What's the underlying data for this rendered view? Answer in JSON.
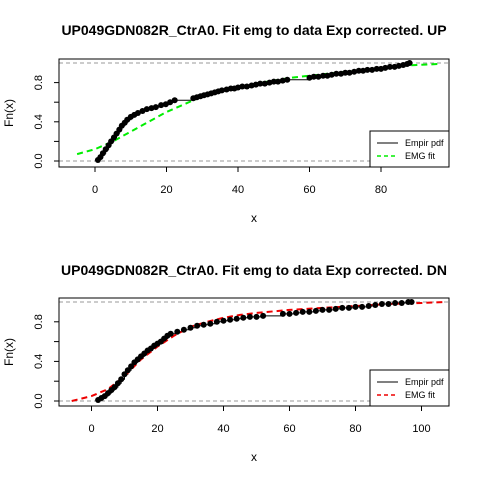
{
  "chart_data": [
    {
      "type": "line",
      "title": "UP049GDN082R_CtrA0. Fit emg to data Exp corrected. UP",
      "xlabel": "x",
      "ylabel": "Fn(x)",
      "xlim": [
        -10,
        100
      ],
      "ylim": [
        0,
        1
      ],
      "x_ticks": [
        "0",
        "20",
        "40",
        "60",
        "80"
      ],
      "y_ticks": [
        "0.0",
        "0.4",
        "0.8"
      ],
      "legend_position": "bottom-right",
      "legend": [
        "Empir pdf",
        "EMG fit"
      ],
      "fit_color": "#00ee00",
      "series": [
        {
          "name": "Empir pdf",
          "color": "#000000",
          "points": [
            [
              0.8,
              0.01
            ],
            [
              1.5,
              0.04
            ],
            [
              2.2,
              0.08
            ],
            [
              3.0,
              0.12
            ],
            [
              3.8,
              0.16
            ],
            [
              4.5,
              0.2
            ],
            [
              5.3,
              0.24
            ],
            [
              6.0,
              0.28
            ],
            [
              6.8,
              0.32
            ],
            [
              7.5,
              0.36
            ],
            [
              8.3,
              0.39
            ],
            [
              9.0,
              0.42
            ],
            [
              10.0,
              0.45
            ],
            [
              11.0,
              0.47
            ],
            [
              12.0,
              0.49
            ],
            [
              13.3,
              0.51
            ],
            [
              14.5,
              0.53
            ],
            [
              15.8,
              0.54
            ],
            [
              17.0,
              0.55
            ],
            [
              18.5,
              0.57
            ],
            [
              19.8,
              0.58
            ],
            [
              21.0,
              0.6
            ],
            [
              22.3,
              0.62
            ],
            [
              27.5,
              0.64
            ],
            [
              28.5,
              0.65
            ],
            [
              29.5,
              0.66
            ],
            [
              30.5,
              0.67
            ],
            [
              31.5,
              0.68
            ],
            [
              32.5,
              0.69
            ],
            [
              33.5,
              0.7
            ],
            [
              34.5,
              0.71
            ],
            [
              35.5,
              0.72
            ],
            [
              36.8,
              0.73
            ],
            [
              38.0,
              0.74
            ],
            [
              39.0,
              0.74
            ],
            [
              40.0,
              0.75
            ],
            [
              41.2,
              0.76
            ],
            [
              42.5,
              0.76
            ],
            [
              43.8,
              0.77
            ],
            [
              45.0,
              0.78
            ],
            [
              46.2,
              0.79
            ],
            [
              47.5,
              0.79
            ],
            [
              48.8,
              0.8
            ],
            [
              50.0,
              0.81
            ],
            [
              51.2,
              0.81
            ],
            [
              52.5,
              0.82
            ],
            [
              53.8,
              0.83
            ],
            [
              60.0,
              0.85
            ],
            [
              61.2,
              0.86
            ],
            [
              62.5,
              0.86
            ],
            [
              63.8,
              0.87
            ],
            [
              65.0,
              0.87
            ],
            [
              66.2,
              0.88
            ],
            [
              67.5,
              0.89
            ],
            [
              68.8,
              0.89
            ],
            [
              70.0,
              0.9
            ],
            [
              71.2,
              0.9
            ],
            [
              72.5,
              0.91
            ],
            [
              73.8,
              0.92
            ],
            [
              75.0,
              0.92
            ],
            [
              76.2,
              0.93
            ],
            [
              77.5,
              0.93
            ],
            [
              78.8,
              0.94
            ],
            [
              80.0,
              0.94
            ],
            [
              81.2,
              0.95
            ],
            [
              82.5,
              0.96
            ],
            [
              83.8,
              0.96
            ],
            [
              85.0,
              0.97
            ],
            [
              86.2,
              0.98
            ],
            [
              87.3,
              0.99
            ],
            [
              88.0,
              1.0
            ]
          ]
        },
        {
          "name": "EMG fit",
          "style": "dashed",
          "color": "#00ee00",
          "points": [
            [
              -5,
              0.07
            ],
            [
              0,
              0.12
            ],
            [
              5,
              0.2
            ],
            [
              10,
              0.3
            ],
            [
              15,
              0.4
            ],
            [
              20,
              0.5
            ],
            [
              25,
              0.58
            ],
            [
              30,
              0.66
            ],
            [
              35,
              0.71
            ],
            [
              40,
              0.75
            ],
            [
              45,
              0.79
            ],
            [
              50,
              0.82
            ],
            [
              55,
              0.85
            ],
            [
              60,
              0.87
            ],
            [
              65,
              0.89
            ],
            [
              70,
              0.91
            ],
            [
              75,
              0.93
            ],
            [
              80,
              0.95
            ],
            [
              85,
              0.97
            ],
            [
              90,
              0.98
            ],
            [
              96,
              0.99
            ]
          ]
        }
      ]
    },
    {
      "type": "line",
      "title": "UP049GDN082R_CtrA0. Fit emg to data Exp corrected. DN",
      "xlabel": "x",
      "ylabel": "Fn(x)",
      "xlim": [
        -10,
        110
      ],
      "ylim": [
        0,
        1
      ],
      "x_ticks": [
        "0",
        "20",
        "40",
        "60",
        "80",
        "100"
      ],
      "y_ticks": [
        "0.0",
        "0.4",
        "0.8"
      ],
      "legend_position": "bottom-right",
      "legend": [
        "Empir pdf",
        "EMG fit"
      ],
      "fit_color": "#ee0000",
      "series": [
        {
          "name": "Empir pdf",
          "color": "#000000",
          "points": [
            [
              2.0,
              0.01
            ],
            [
              3.0,
              0.03
            ],
            [
              4.0,
              0.05
            ],
            [
              5.0,
              0.08
            ],
            [
              6.0,
              0.11
            ],
            [
              7.0,
              0.14
            ],
            [
              8.0,
              0.18
            ],
            [
              9.0,
              0.22
            ],
            [
              10.0,
              0.27
            ],
            [
              11.0,
              0.31
            ],
            [
              12.0,
              0.35
            ],
            [
              13.0,
              0.39
            ],
            [
              14.0,
              0.42
            ],
            [
              15.0,
              0.45
            ],
            [
              16.0,
              0.48
            ],
            [
              17.0,
              0.51
            ],
            [
              18.0,
              0.53
            ],
            [
              19.0,
              0.56
            ],
            [
              20.0,
              0.58
            ],
            [
              21.0,
              0.6
            ],
            [
              22.0,
              0.63
            ],
            [
              23.0,
              0.66
            ],
            [
              24.0,
              0.68
            ],
            [
              26.0,
              0.7
            ],
            [
              28.0,
              0.72
            ],
            [
              30.0,
              0.74
            ],
            [
              32.0,
              0.76
            ],
            [
              34.0,
              0.77
            ],
            [
              36.0,
              0.78
            ],
            [
              38.0,
              0.8
            ],
            [
              40.0,
              0.81
            ],
            [
              42.0,
              0.82
            ],
            [
              44.0,
              0.83
            ],
            [
              46.0,
              0.84
            ],
            [
              48.0,
              0.85
            ],
            [
              50.0,
              0.85
            ],
            [
              52.0,
              0.86
            ],
            [
              58.0,
              0.88
            ],
            [
              60.0,
              0.88
            ],
            [
              62.0,
              0.89
            ],
            [
              64.0,
              0.9
            ],
            [
              66.0,
              0.9
            ],
            [
              68.0,
              0.91
            ],
            [
              70.0,
              0.92
            ],
            [
              72.0,
              0.92
            ],
            [
              74.0,
              0.93
            ],
            [
              76.0,
              0.94
            ],
            [
              78.0,
              0.94
            ],
            [
              80.0,
              0.95
            ],
            [
              82.0,
              0.95
            ],
            [
              84.0,
              0.96
            ],
            [
              86.0,
              0.97
            ],
            [
              88.0,
              0.98
            ],
            [
              90.0,
              0.98
            ],
            [
              92.0,
              0.99
            ],
            [
              94.0,
              0.99
            ],
            [
              96.0,
              1.0
            ],
            [
              97.0,
              1.0
            ]
          ]
        },
        {
          "name": "EMG fit",
          "style": "dashed",
          "color": "#ee0000",
          "points": [
            [
              -6,
              0.0
            ],
            [
              0,
              0.05
            ],
            [
              5,
              0.12
            ],
            [
              10,
              0.25
            ],
            [
              15,
              0.42
            ],
            [
              20,
              0.55
            ],
            [
              25,
              0.66
            ],
            [
              30,
              0.75
            ],
            [
              35,
              0.8
            ],
            [
              40,
              0.84
            ],
            [
              45,
              0.87
            ],
            [
              50,
              0.89
            ],
            [
              60,
              0.92
            ],
            [
              70,
              0.94
            ],
            [
              80,
              0.96
            ],
            [
              90,
              0.98
            ],
            [
              100,
              0.99
            ],
            [
              107,
              1.0
            ]
          ]
        }
      ]
    }
  ]
}
